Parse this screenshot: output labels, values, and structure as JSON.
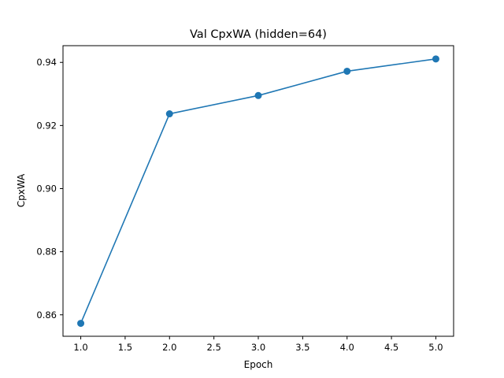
{
  "chart_data": {
    "type": "line",
    "title": "Val CpxWA (hidden=64)",
    "xlabel": "Epoch",
    "ylabel": "CpxWA",
    "x": [
      1.0,
      2.0,
      3.0,
      4.0,
      5.0
    ],
    "series": [
      {
        "values": [
          0.8573,
          0.9237,
          0.9295,
          0.9372,
          0.9411
        ],
        "color": "#1f77b4",
        "marker": "circle"
      }
    ],
    "xlim": [
      0.8,
      5.2
    ],
    "ylim": [
      0.8532,
      0.9453
    ],
    "xticks": [
      1.0,
      1.5,
      2.0,
      2.5,
      3.0,
      3.5,
      4.0,
      4.5,
      5.0
    ],
    "xtick_labels": [
      "1.0",
      "1.5",
      "2.0",
      "2.5",
      "3.0",
      "3.5",
      "4.0",
      "4.5",
      "5.0"
    ],
    "yticks": [
      0.86,
      0.88,
      0.9,
      0.92,
      0.94
    ],
    "ytick_labels": [
      "0.86",
      "0.88",
      "0.90",
      "0.92",
      "0.94"
    ],
    "grid": false,
    "legend": "none"
  }
}
